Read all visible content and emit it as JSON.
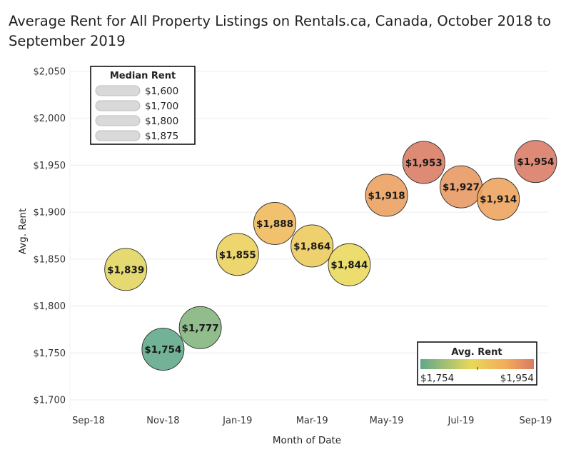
{
  "chart_data": {
    "type": "scatter",
    "title": "Average Rent for All Property Listings on Rentals.ca, Canada, October 2018 to September 2019",
    "xlabel": "Month of Date",
    "ylabel": "Avg. Rent",
    "x_tick_labels": [
      "Sep-18",
      "Nov-18",
      "Jan-19",
      "Mar-19",
      "May-19",
      "Jul-19",
      "Sep-19"
    ],
    "y_tick_labels": [
      "$1,700",
      "$1,750",
      "$1,800",
      "$1,850",
      "$1,900",
      "$1,950",
      "$2,000",
      "$2,050"
    ],
    "ylim": [
      1700,
      2050
    ],
    "grid": "horizontal",
    "points": [
      {
        "x": "2018-10",
        "y": 1839,
        "label": "$1,839"
      },
      {
        "x": "2018-11",
        "y": 1754,
        "label": "$1,754"
      },
      {
        "x": "2018-12",
        "y": 1777,
        "label": "$1,777"
      },
      {
        "x": "2019-01",
        "y": 1855,
        "label": "$1,855"
      },
      {
        "x": "2019-02",
        "y": 1888,
        "label": "$1,888"
      },
      {
        "x": "2019-03",
        "y": 1864,
        "label": "$1,864"
      },
      {
        "x": "2019-04",
        "y": 1844,
        "label": "$1,844"
      },
      {
        "x": "2019-05",
        "y": 1918,
        "label": "$1,918"
      },
      {
        "x": "2019-06",
        "y": 1953,
        "label": "$1,953"
      },
      {
        "x": "2019-07",
        "y": 1927,
        "label": "$1,927"
      },
      {
        "x": "2019-08",
        "y": 1914,
        "label": "$1,914"
      },
      {
        "x": "2019-09",
        "y": 1954,
        "label": "$1,954"
      }
    ],
    "size_legend": {
      "title": "Median Rent",
      "placement": "top-left",
      "entries": [
        "$1,600",
        "$1,700",
        "$1,800",
        "$1,875"
      ]
    },
    "color_legend": {
      "title": "Avg. Rent",
      "placement": "bottom-right",
      "min_label": "$1,754",
      "max_label": "$1,954",
      "min": 1754,
      "max": 1954,
      "colors": [
        "#5fa889",
        "#e9d85a",
        "#f2ad5a",
        "#d97a63"
      ]
    }
  }
}
